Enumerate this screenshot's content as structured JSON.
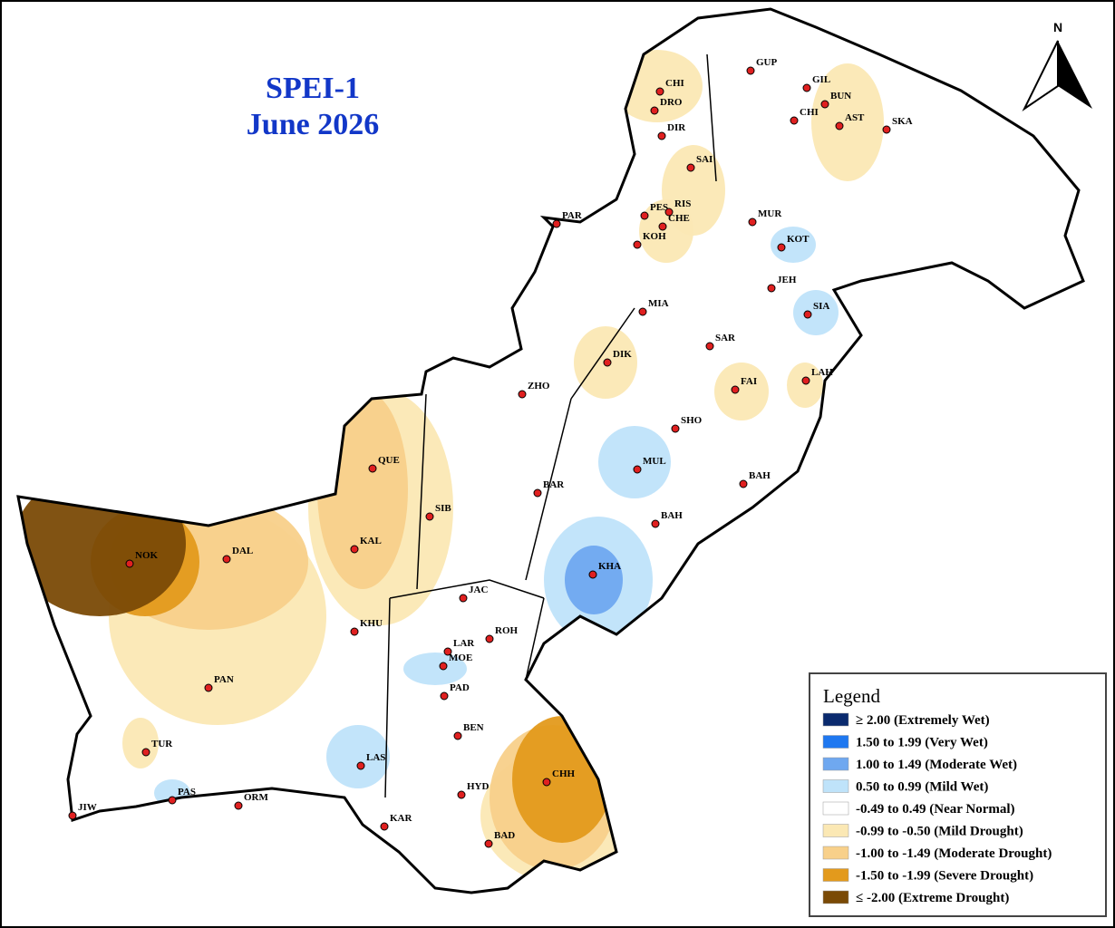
{
  "title": "SPEI-1",
  "subtitle": "June 2026",
  "north": "N",
  "legend": {
    "title": "Legend",
    "entries": [
      {
        "label": "≥ 2.00 (Extremely Wet)",
        "color": "#0a2a6e"
      },
      {
        "label": "1.50 to 1.99 (Very Wet)",
        "color": "#1f78f0"
      },
      {
        "label": "1.00 to 1.49 (Moderate Wet)",
        "color": "#6fa8f0"
      },
      {
        "label": "0.50 to 0.99 (Mild Wet)",
        "color": "#bfe3fa"
      },
      {
        "label": "-0.49 to 0.49 (Near Normal)",
        "color": "#ffffff"
      },
      {
        "label": "-0.99 to -0.50 (Mild Drought)",
        "color": "#fbe8b4"
      },
      {
        "label": "-1.00 to -1.49 (Moderate Drought)",
        "color": "#f8d08a"
      },
      {
        "label": "-1.50 to -1.99 (Severe Drought)",
        "color": "#e39a1c"
      },
      {
        "label": "≤ -2.00 (Extreme Drought)",
        "color": "#7a4a06"
      }
    ]
  },
  "stations": [
    "CHI",
    "DRO",
    "DIR",
    "GUP",
    "GIL",
    "BUN",
    "CHI",
    "AST",
    "SKA",
    "SAI",
    "PAR",
    "PES",
    "RIS",
    "CHE",
    "KOH",
    "MUR",
    "KOT",
    "JEH",
    "MIA",
    "SIA",
    "SAR",
    "DIK",
    "LAH",
    "FAI",
    "ZHO",
    "SHO",
    "QUE",
    "MUL",
    "BAR",
    "SIB",
    "BAH",
    "BAH",
    "NOK",
    "DAL",
    "KAL",
    "KHA",
    "JAC",
    "KHU",
    "LAR",
    "ROH",
    "MOE",
    "PAD",
    "PAN",
    "BEN",
    "TUR",
    "LAS",
    "CHH",
    "HYD",
    "PAS",
    "ORM",
    "JIW",
    "KAR",
    "BAD"
  ]
}
